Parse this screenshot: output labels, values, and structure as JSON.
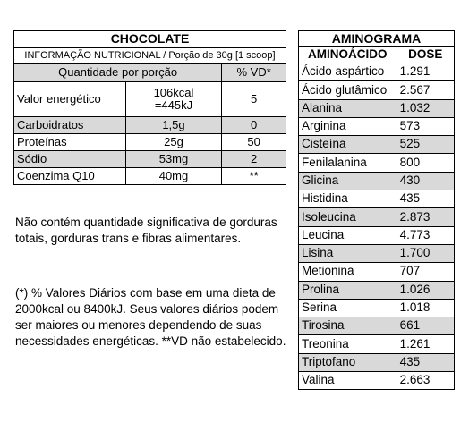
{
  "nutrition": {
    "title": "CHOCOLATE",
    "subtitle": "INFORMAÇÃO NUTRICIONAL / Porção de 30g [1 scoop]",
    "header": {
      "qty": "Quantidade por porção",
      "vd": "% VD*"
    },
    "energy": {
      "label": "Valor energético",
      "kcal": "106kcal",
      "kj": "=445kJ",
      "vd": "5"
    },
    "rows": [
      {
        "label": "Carboidratos",
        "qty": "1,5g",
        "vd": "0"
      },
      {
        "label": "Proteínas",
        "qty": "25g",
        "vd": "50"
      },
      {
        "label": "Sódio",
        "qty": "53mg",
        "vd": "2"
      },
      {
        "label": "Coenzima Q10",
        "qty": "40mg",
        "vd": "**"
      }
    ]
  },
  "notes": {
    "p1": "Não contém quantidade significativa de gorduras totais, gorduras trans e fibras alimentares.",
    "p2": "(*) % Valores Diários com base em uma dieta de 2000kcal ou 8400kJ. Seus valores diários podem ser maiores ou menores dependendo de suas necessidades energéticas. **VD não estabelecido."
  },
  "amino": {
    "title": "AMINOGRAMA",
    "header": {
      "name": "AMINOÁCIDO",
      "dose": "DOSE"
    },
    "rows": [
      {
        "name": "Ácido aspártico",
        "dose": "1.291"
      },
      {
        "name": "Ácido glutâmico",
        "dose": "2.567"
      },
      {
        "name": "Alanina",
        "dose": "1.032"
      },
      {
        "name": "Arginina",
        "dose": "573"
      },
      {
        "name": "Cisteína",
        "dose": "525"
      },
      {
        "name": "Fenilalanina",
        "dose": "800"
      },
      {
        "name": "Glicina",
        "dose": "430"
      },
      {
        "name": "Histidina",
        "dose": "435"
      },
      {
        "name": "Isoleucina",
        "dose": "2.873"
      },
      {
        "name": "Leucina",
        "dose": "4.773"
      },
      {
        "name": "Lisina",
        "dose": "1.700"
      },
      {
        "name": "Metionina",
        "dose": "707"
      },
      {
        "name": "Prolina",
        "dose": "1.026"
      },
      {
        "name": "Serina",
        "dose": "1.018"
      },
      {
        "name": "Tirosina",
        "dose": "661"
      },
      {
        "name": "Treonina",
        "dose": "1.261"
      },
      {
        "name": "Triptofano",
        "dose": "435"
      },
      {
        "name": "Valina",
        "dose": "2.663"
      }
    ]
  }
}
